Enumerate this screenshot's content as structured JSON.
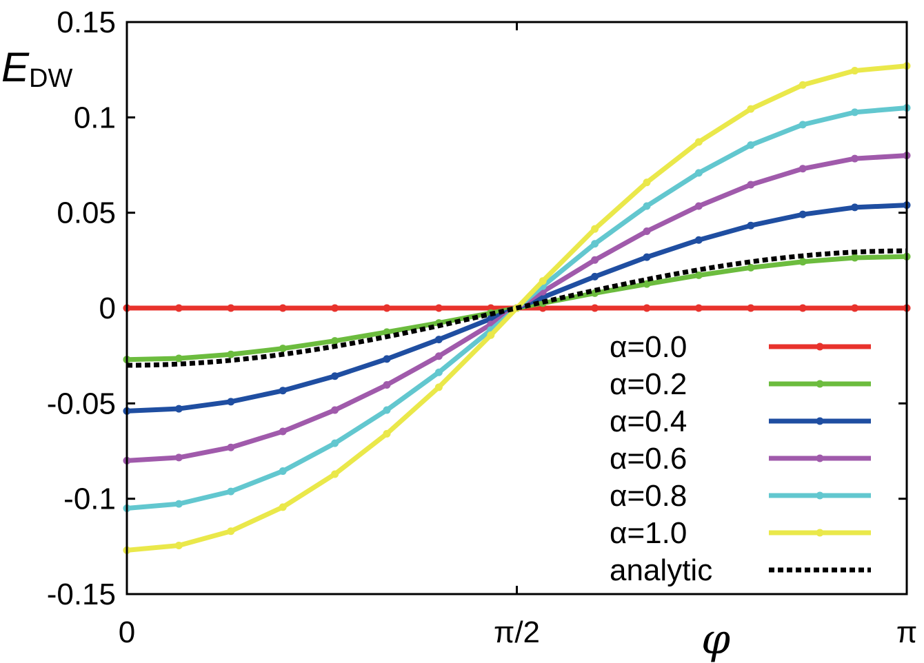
{
  "chart_data": {
    "type": "line",
    "title": "",
    "xlabel": "φ",
    "ylabel": "E",
    "ylabel_subscript": "DW",
    "xlim": [
      0,
      3.14159
    ],
    "ylim": [
      -0.15,
      0.15
    ],
    "xticks": [
      {
        "value": 0,
        "label": "0"
      },
      {
        "value": 1.5708,
        "label": "π/2"
      },
      {
        "value": 3.14159,
        "label": "π"
      }
    ],
    "yticks": [
      {
        "value": 0.15,
        "label": "0.15"
      },
      {
        "value": 0.1,
        "label": "0.1"
      },
      {
        "value": 0.05,
        "label": "0.05"
      },
      {
        "value": 0,
        "label": "0"
      },
      {
        "value": -0.05,
        "label": "-0.05"
      },
      {
        "value": -0.1,
        "label": "-0.1"
      },
      {
        "value": -0.15,
        "label": "-0.15"
      }
    ],
    "legend_position": "bottom-right",
    "x": [
      0,
      0.2094,
      0.4189,
      0.6283,
      0.8378,
      1.0472,
      1.2566,
      1.4661,
      1.5708,
      1.6755,
      1.885,
      2.0944,
      2.3038,
      2.5133,
      2.7227,
      2.9322,
      3.1416
    ],
    "series": [
      {
        "name": "α=0.0",
        "color": "#e8322c",
        "values": [
          0,
          0,
          0,
          0,
          0,
          0,
          0,
          0,
          0,
          0,
          0,
          0,
          0,
          0,
          0,
          0,
          0
        ]
      },
      {
        "name": "α=0.2",
        "color": "#6cbc3e",
        "values": [
          -0.027,
          -0.0264,
          -0.0243,
          -0.0212,
          -0.0172,
          -0.0126,
          -0.0078,
          -0.0026,
          0.0,
          0.0026,
          0.0078,
          0.0126,
          0.0172,
          0.0212,
          0.0243,
          0.0264,
          0.027
        ]
      },
      {
        "name": "α=0.4",
        "color": "#1f4ea1",
        "values": [
          -0.054,
          -0.0528,
          -0.0491,
          -0.0433,
          -0.0357,
          -0.0267,
          -0.0165,
          -0.0056,
          0.0,
          0.0056,
          0.0165,
          0.0267,
          0.0357,
          0.0433,
          0.0491,
          0.0528,
          0.054
        ]
      },
      {
        "name": "α=0.6",
        "color": "#a05aab",
        "values": [
          -0.08,
          -0.0784,
          -0.0731,
          -0.0647,
          -0.0535,
          -0.0403,
          -0.0252,
          -0.0086,
          0.0,
          0.0086,
          0.0252,
          0.0403,
          0.0535,
          0.0647,
          0.0731,
          0.0784,
          0.08
        ]
      },
      {
        "name": "α=0.8",
        "color": "#62c7cf",
        "values": [
          -0.105,
          -0.1027,
          -0.0962,
          -0.0855,
          -0.0709,
          -0.0535,
          -0.0337,
          -0.0115,
          0.0,
          0.0115,
          0.0337,
          0.0535,
          0.0709,
          0.0855,
          0.0962,
          0.1027,
          0.105
        ]
      },
      {
        "name": "α=1.0",
        "color": "#eae84a",
        "values": [
          -0.127,
          -0.1245,
          -0.117,
          -0.1044,
          -0.0871,
          -0.0659,
          -0.0415,
          -0.0142,
          0.0,
          0.0142,
          0.0415,
          0.0659,
          0.0871,
          0.1044,
          0.117,
          0.1245,
          0.127
        ]
      }
    ],
    "analytic": {
      "name": "analytic",
      "color": "#000000",
      "amplitude": 0.03
    }
  }
}
